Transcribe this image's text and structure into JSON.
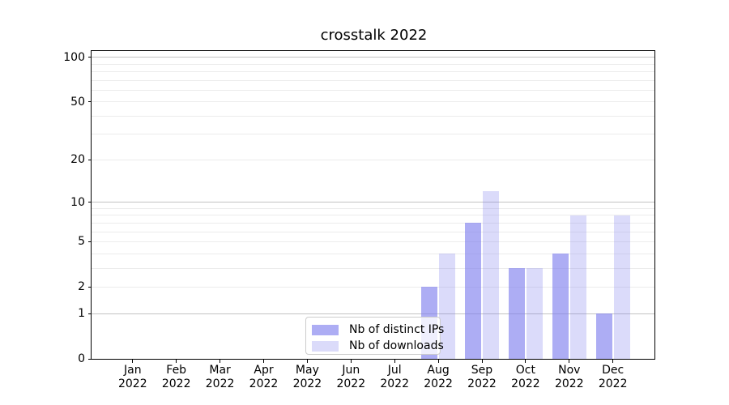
{
  "chart_data": {
    "type": "bar",
    "title": "crosstalk 2022",
    "categories": [
      "Jan",
      "Feb",
      "Mar",
      "Apr",
      "May",
      "Jun",
      "Jul",
      "Aug",
      "Sep",
      "Oct",
      "Nov",
      "Dec"
    ],
    "category_year": "2022",
    "series": [
      {
        "name": "Nb of distinct IPs",
        "color": "rgba(122,122,237,0.62)",
        "values": [
          0,
          0,
          0,
          0,
          0,
          0,
          0,
          2,
          7,
          3,
          4,
          1
        ]
      },
      {
        "name": "Nb of downloads",
        "color": "rgba(122,122,237,0.27)",
        "values": [
          0,
          0,
          0,
          0,
          0,
          0,
          0,
          4,
          12,
          3,
          8,
          8
        ]
      }
    ],
    "y_axis": {
      "scale": "log1p",
      "max": 110,
      "ticks": [
        0,
        1,
        2,
        5,
        10,
        20,
        50,
        100
      ],
      "major_gridlines": [
        1,
        10,
        100
      ],
      "minor_gridlines": [
        2,
        3,
        4,
        5,
        6,
        7,
        8,
        9,
        20,
        30,
        40,
        50,
        60,
        70,
        80,
        90
      ]
    },
    "legend_position": "lower center",
    "colors": {
      "grid_major": "#c3c3c3",
      "grid_minor": "#ececec",
      "frame": "#000000",
      "text": "#000000"
    }
  }
}
